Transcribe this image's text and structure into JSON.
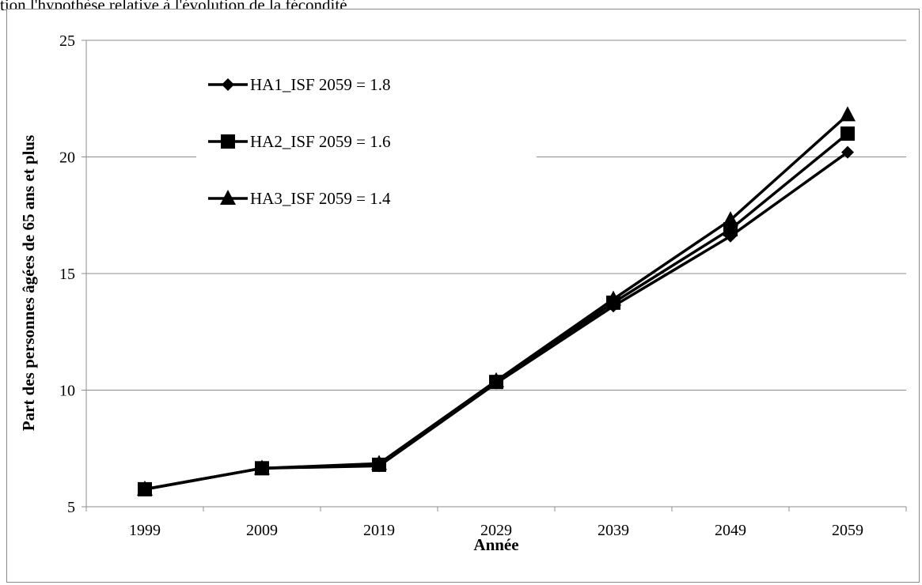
{
  "page": {
    "caption_fragment": "tion l'hypothèse relative à l'évolution de la fécondité"
  },
  "chart_data": {
    "type": "line",
    "title": "",
    "xlabel": "Année",
    "ylabel": "Part des personnes âgées de 65 ans et plus",
    "categories": [
      "1999",
      "2009",
      "2019",
      "2029",
      "2039",
      "2049",
      "2059"
    ],
    "ylim": [
      5,
      25
    ],
    "yticks": [
      5,
      10,
      15,
      20,
      25
    ],
    "grid": "horizontal",
    "legend_position": "top-left",
    "series": [
      {
        "name": "HA1_ISF 2059 = 1.8",
        "marker": "diamond",
        "color": "#000000",
        "values": [
          5.75,
          6.65,
          6.75,
          10.3,
          13.6,
          16.6,
          20.2
        ]
      },
      {
        "name": "HA2_ISF 2059 = 1.6",
        "marker": "square",
        "color": "#000000",
        "values": [
          5.75,
          6.65,
          6.8,
          10.35,
          13.75,
          16.9,
          21.0
        ]
      },
      {
        "name": "HA3_ISF 2059 = 1.4",
        "marker": "triangle",
        "color": "#000000",
        "values": [
          5.75,
          6.65,
          6.85,
          10.4,
          13.9,
          17.3,
          21.8
        ]
      }
    ]
  }
}
